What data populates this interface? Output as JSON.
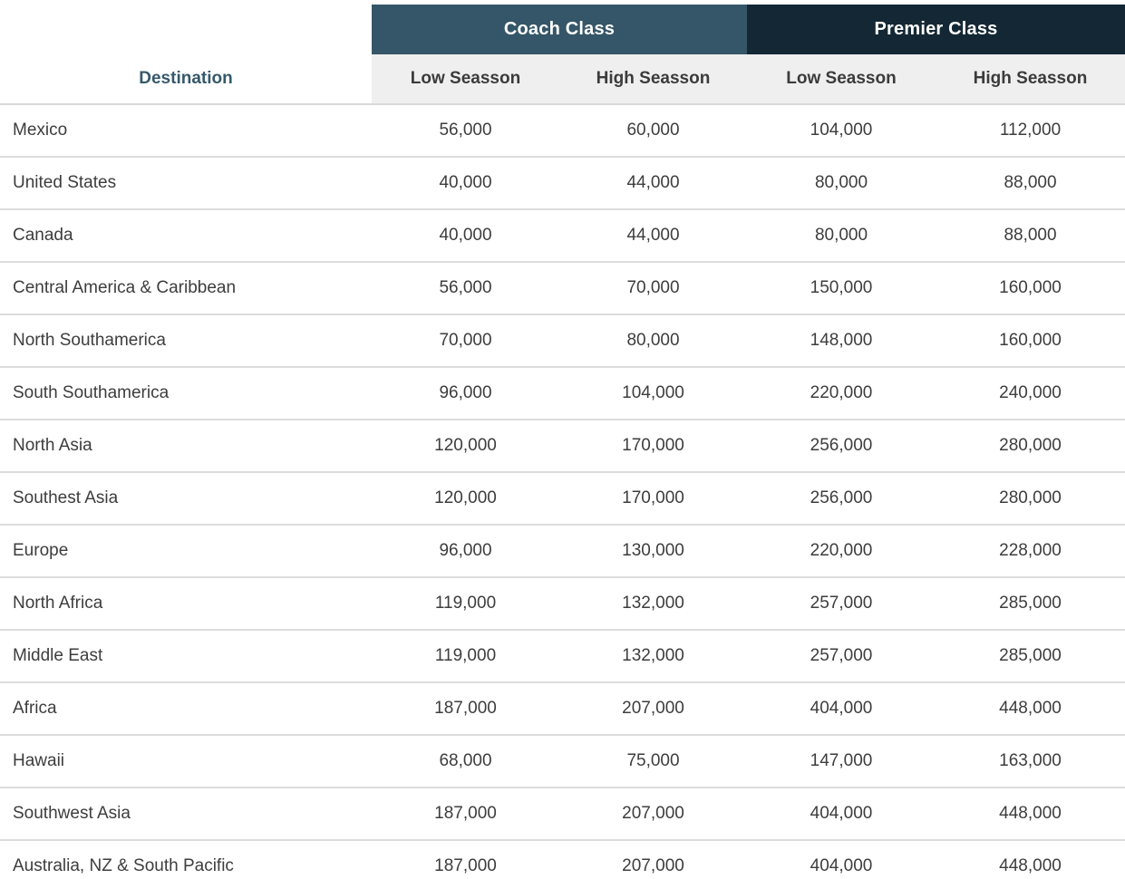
{
  "colors": {
    "coach_header_bg": "#355668",
    "premier_header_bg": "#132734",
    "header_text": "#ffffff",
    "subheader_bg": "#efefef",
    "destination_header_text": "#36596b",
    "body_text": "#3d3d3d",
    "row_divider": "#dcdcdc"
  },
  "chart_data": {
    "type": "table",
    "destination_header": "Destination",
    "column_groups": [
      {
        "label": "Coach Class",
        "columns": [
          "Low Seasson",
          "High Seasson"
        ]
      },
      {
        "label": "Premier Class",
        "columns": [
          "Low Seasson",
          "High Seasson"
        ]
      }
    ],
    "subheaders": [
      "Low Seasson",
      "High Seasson",
      "Low Seasson",
      "High Seasson"
    ],
    "rows": [
      {
        "destination": "Mexico",
        "values": [
          "56,000",
          "60,000",
          "104,000",
          "112,000"
        ]
      },
      {
        "destination": "United States",
        "values": [
          "40,000",
          "44,000",
          "80,000",
          "88,000"
        ]
      },
      {
        "destination": "Canada",
        "values": [
          "40,000",
          "44,000",
          "80,000",
          "88,000"
        ]
      },
      {
        "destination": "Central America & Caribbean",
        "values": [
          "56,000",
          "70,000",
          "150,000",
          "160,000"
        ]
      },
      {
        "destination": "North Southamerica",
        "values": [
          "70,000",
          "80,000",
          "148,000",
          "160,000"
        ]
      },
      {
        "destination": "South Southamerica",
        "values": [
          "96,000",
          "104,000",
          "220,000",
          "240,000"
        ]
      },
      {
        "destination": "North Asia",
        "values": [
          "120,000",
          "170,000",
          "256,000",
          "280,000"
        ]
      },
      {
        "destination": "Southest Asia",
        "values": [
          "120,000",
          "170,000",
          "256,000",
          "280,000"
        ]
      },
      {
        "destination": "Europe",
        "values": [
          "96,000",
          "130,000",
          "220,000",
          "228,000"
        ]
      },
      {
        "destination": "North Africa",
        "values": [
          "119,000",
          "132,000",
          "257,000",
          "285,000"
        ]
      },
      {
        "destination": "Middle East",
        "values": [
          "119,000",
          "132,000",
          "257,000",
          "285,000"
        ]
      },
      {
        "destination": "Africa",
        "values": [
          "187,000",
          "207,000",
          "404,000",
          "448,000"
        ]
      },
      {
        "destination": "Hawaii",
        "values": [
          "68,000",
          "75,000",
          "147,000",
          "163,000"
        ]
      },
      {
        "destination": "Southwest Asia",
        "values": [
          "187,000",
          "207,000",
          "404,000",
          "448,000"
        ]
      },
      {
        "destination": "Australia, NZ & South Pacific",
        "values": [
          "187,000",
          "207,000",
          "404,000",
          "448,000"
        ]
      }
    ]
  }
}
